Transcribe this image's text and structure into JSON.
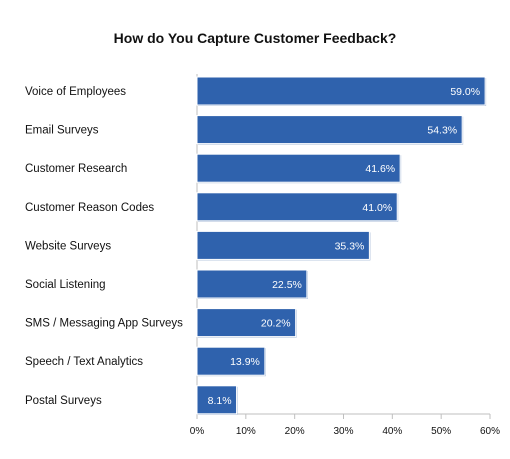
{
  "chart_data": {
    "type": "bar",
    "orientation": "horizontal",
    "title": "How do You Capture Customer Feedback?",
    "categories": [
      "Voice of Employees",
      "Email Surveys",
      "Customer Research",
      "Customer Reason Codes",
      "Website Surveys",
      "Social Listening",
      "SMS / Messaging App Surveys",
      "Speech / Text Analytics",
      "Postal Surveys"
    ],
    "values": [
      59.0,
      54.3,
      41.6,
      41.0,
      35.3,
      22.5,
      20.2,
      13.9,
      8.1
    ],
    "value_labels": [
      "59.0%",
      "54.3%",
      "41.6%",
      "41.0%",
      "35.3%",
      "22.5%",
      "20.2%",
      "13.9%",
      "8.1%"
    ],
    "xlim": [
      0,
      60
    ],
    "xticks": [
      "0%",
      "10%",
      "20%",
      "30%",
      "40%",
      "50%",
      "60%"
    ],
    "xlabel": "",
    "ylabel": "",
    "grid": false,
    "legend": false,
    "bar_color": "#2f62ad"
  }
}
